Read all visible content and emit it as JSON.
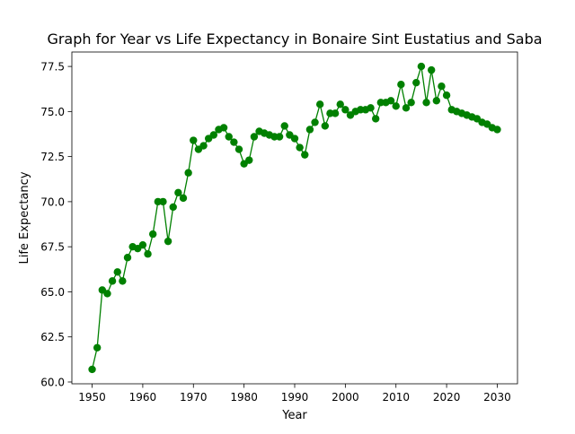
{
  "chart_data": {
    "type": "line",
    "title": "Graph for Year vs Life Expectancy in Bonaire Sint Eustatius and Saba",
    "xlabel": "Year",
    "ylabel": "Life Expectancy",
    "xlim": [
      1946,
      2034
    ],
    "ylim": [
      59.9,
      78.3
    ],
    "x_ticks": [
      1950,
      1960,
      1970,
      1980,
      1990,
      2000,
      2010,
      2020,
      2030
    ],
    "y_ticks": [
      60.0,
      62.5,
      65.0,
      67.5,
      70.0,
      72.5,
      75.0,
      77.5
    ],
    "grid": false,
    "legend": "none",
    "series": [
      {
        "color": "#008000",
        "marker": "circle",
        "x": [
          1950,
          1951,
          1952,
          1953,
          1954,
          1955,
          1956,
          1957,
          1958,
          1959,
          1960,
          1961,
          1962,
          1963,
          1964,
          1965,
          1966,
          1967,
          1968,
          1969,
          1970,
          1971,
          1972,
          1973,
          1974,
          1975,
          1976,
          1977,
          1978,
          1979,
          1980,
          1981,
          1982,
          1983,
          1984,
          1985,
          1986,
          1987,
          1988,
          1989,
          1990,
          1991,
          1992,
          1993,
          1994,
          1995,
          1996,
          1997,
          1998,
          1999,
          2000,
          2001,
          2002,
          2003,
          2004,
          2005,
          2006,
          2007,
          2008,
          2009,
          2010,
          2011,
          2012,
          2013,
          2014,
          2015,
          2016,
          2017,
          2018,
          2019,
          2020,
          2021,
          2022,
          2023,
          2024,
          2025,
          2026,
          2027,
          2028,
          2029,
          2030
        ],
        "y": [
          60.7,
          61.9,
          65.1,
          64.9,
          65.6,
          66.1,
          65.6,
          66.9,
          67.5,
          67.4,
          67.6,
          67.1,
          68.2,
          70.0,
          70.0,
          67.8,
          69.7,
          70.5,
          70.2,
          71.6,
          73.4,
          72.9,
          73.1,
          73.5,
          73.7,
          74.0,
          74.1,
          73.6,
          73.3,
          72.9,
          72.1,
          72.3,
          73.6,
          73.9,
          73.8,
          73.7,
          73.6,
          73.6,
          74.2,
          73.7,
          73.5,
          73.0,
          72.6,
          74.0,
          74.4,
          75.4,
          74.2,
          74.9,
          74.9,
          75.4,
          75.1,
          74.8,
          75.0,
          75.1,
          75.1,
          75.2,
          74.6,
          75.5,
          75.5,
          75.6,
          75.3,
          76.5,
          75.2,
          75.5,
          76.6,
          77.5,
          75.5,
          77.3,
          75.6,
          76.4,
          75.9,
          75.1,
          75.0,
          74.9,
          74.8,
          74.7,
          74.6,
          74.4,
          74.3,
          74.1,
          74.0
        ]
      }
    ]
  }
}
